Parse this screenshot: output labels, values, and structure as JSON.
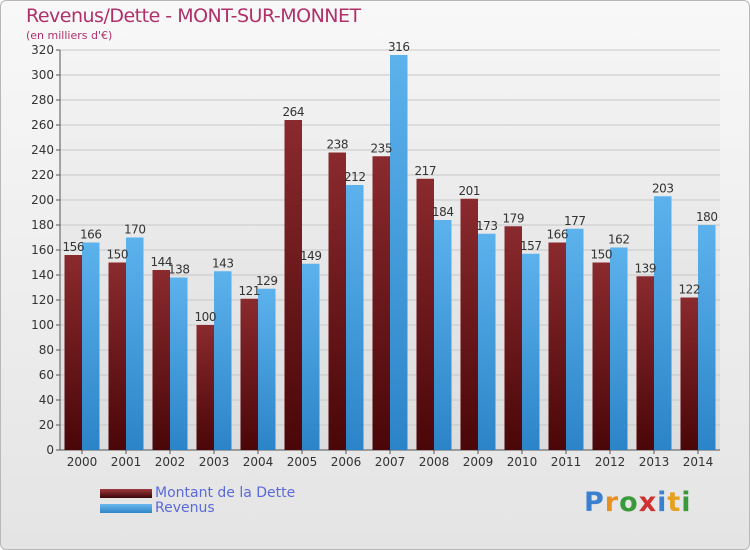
{
  "header": {
    "title": "Revenus/Dette - MONT-SUR-MONNET",
    "subtitle": "(en milliers d'€)"
  },
  "colors": {
    "dette": "#7a1a1e",
    "revenus": "#3f9fe0",
    "title": "#b0306a",
    "legend_text": "#5a6ad8"
  },
  "legend": {
    "items": [
      {
        "label": "Montant de la Dette",
        "color": "#7a1a1e"
      },
      {
        "label": "Revenus",
        "color": "#3f9fe0"
      }
    ]
  },
  "logo": {
    "letters": [
      "P",
      "r",
      "o",
      "x",
      "i",
      "t",
      "i"
    ],
    "colors": [
      "#3a7fd0",
      "#e89020",
      "#3a9a3a",
      "#d03030",
      "#3a7fd0",
      "#e8a020",
      "#3a9a3a"
    ]
  },
  "chart_data": {
    "type": "bar",
    "categories": [
      "2000",
      "2001",
      "2002",
      "2003",
      "2004",
      "2005",
      "2006",
      "2007",
      "2008",
      "2009",
      "2010",
      "2011",
      "2012",
      "2013",
      "2014"
    ],
    "series": [
      {
        "name": "Montant de la Dette",
        "values": [
          156,
          150,
          144,
          100,
          121,
          264,
          238,
          235,
          217,
          201,
          179,
          166,
          150,
          139,
          122
        ]
      },
      {
        "name": "Revenus",
        "values": [
          166,
          170,
          138,
          143,
          129,
          149,
          212,
          316,
          184,
          173,
          157,
          177,
          162,
          203,
          180
        ]
      }
    ],
    "title": "Revenus/Dette - MONT-SUR-MONNET",
    "ylabel": "(en milliers d'€)",
    "ylim": [
      0,
      320
    ],
    "yticks": [
      0,
      20,
      40,
      60,
      80,
      100,
      120,
      140,
      160,
      180,
      200,
      220,
      240,
      260,
      280,
      300,
      320
    ],
    "grid": true,
    "legend": "bottom-left"
  }
}
